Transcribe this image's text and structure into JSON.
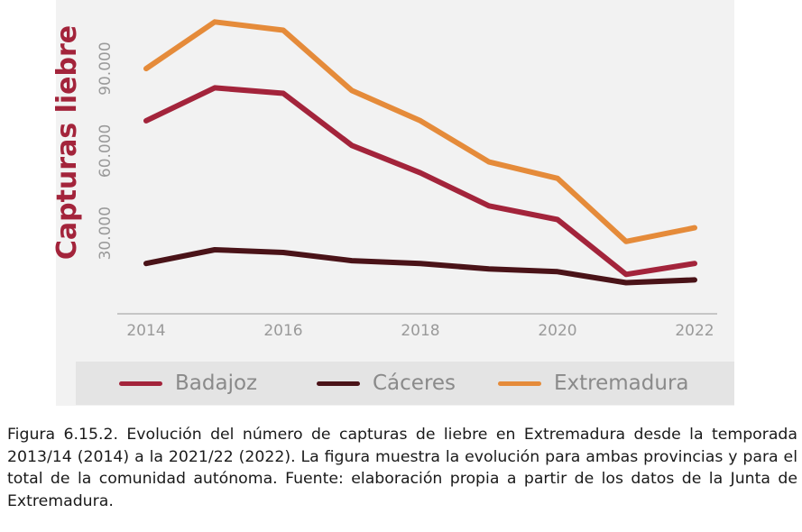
{
  "chart_data": {
    "type": "line",
    "x": [
      2014,
      2015,
      2016,
      2017,
      2018,
      2019,
      2020,
      2021,
      2022
    ],
    "series": [
      {
        "name": "Badajoz",
        "color": "#a3243b",
        "values": [
          71000,
          83000,
          81000,
          62000,
          52000,
          40000,
          35000,
          15000,
          19000
        ]
      },
      {
        "name": "Cáceres",
        "color": "#4a1318",
        "values": [
          19000,
          24000,
          23000,
          20000,
          19000,
          17000,
          16000,
          12000,
          13000
        ]
      },
      {
        "name": "Extremadura",
        "color": "#e58b3a",
        "values": [
          90000,
          107000,
          104000,
          82000,
          71000,
          56000,
          50000,
          27000,
          32000
        ]
      }
    ],
    "ylabel": "Capturas liebre",
    "xlabel": "",
    "ylim": [
      0,
      115000
    ],
    "xlim": [
      2014,
      2022
    ],
    "yticks": [
      30000,
      60000,
      90000
    ],
    "ytick_labels": [
      "30.000",
      "60.000",
      "90.000"
    ],
    "xticks": [
      2014,
      2016,
      2018,
      2020,
      2022
    ],
    "xtick_labels": [
      "2014",
      "2016",
      "2018",
      "2020",
      "2022"
    ],
    "legend": [
      "Badajoz",
      "Cáceres",
      "Extremadura"
    ],
    "legend_position": "bottom",
    "grid": false
  },
  "colors": {
    "ylabel": "#a3243b",
    "tick_text": "#9a9a9a",
    "axis": "#b8b8b8",
    "panel_bg": "#f2f2f2",
    "legend_bg": "#e4e4e4"
  },
  "caption": "Figura 6.15.2. Evolución del número de capturas de liebre en Extremadura desde la temporada 2013/14 (2014) a la 2021/22 (2022). La figura muestra la evolución para ambas provincias y para el total de la comunidad autónoma. Fuente: elaboración propia a partir de los datos de la Junta de Extremadura."
}
